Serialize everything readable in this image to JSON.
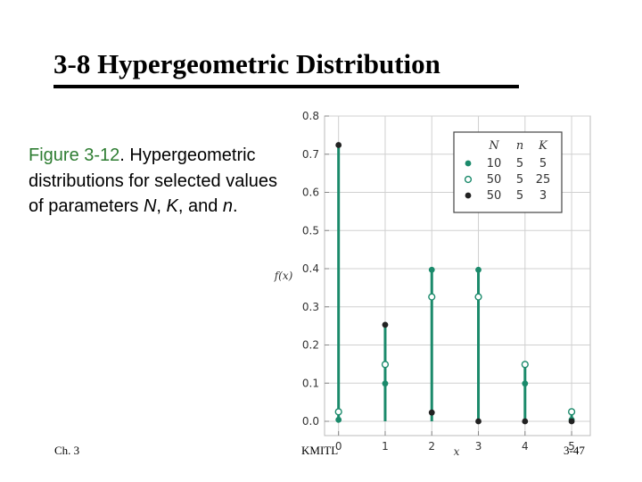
{
  "slide": {
    "title": "3-8 Hypergeometric Distribution",
    "caption": {
      "figure_label": "Figure 3-12",
      "text_part1": ". Hypergeometric distributions for selected values of parameters ",
      "param_N": "N",
      "sep1": ", ",
      "param_K": "K",
      "sep2": ", and ",
      "param_n": "n",
      "end": "."
    },
    "footer": {
      "chapter": "Ch. 3",
      "org": "KMITL",
      "page": "3-47"
    }
  },
  "colors": {
    "stem": "#1b8a6b",
    "filled_marker": "#1b8a6b",
    "dark_marker": "#222222",
    "grid": "#d0d0d0"
  },
  "chart_data": {
    "type": "scatter",
    "title": "",
    "xlabel": "x",
    "ylabel": "f(x)",
    "x": [
      0,
      1,
      2,
      3,
      4,
      5
    ],
    "xlim": [
      -0.3,
      5.4
    ],
    "ylim": [
      0,
      0.8
    ],
    "yticks": [
      "0.0",
      "0.1",
      "0.2",
      "0.3",
      "0.4",
      "0.5",
      "0.6",
      "0.7",
      "0.8"
    ],
    "xticks": [
      "0",
      "1",
      "2",
      "3",
      "4",
      "5"
    ],
    "grid": true,
    "legend": {
      "position": "top-right",
      "headers": [
        "N",
        "n",
        "K"
      ],
      "rows": [
        {
          "marker": "filled-green",
          "N": "10",
          "n": "5",
          "K": "5"
        },
        {
          "marker": "open-circle",
          "N": "50",
          "n": "5",
          "K": "25"
        },
        {
          "marker": "filled-dark",
          "N": "50",
          "n": "5",
          "K": "3"
        }
      ]
    },
    "series": [
      {
        "marker": "filled-green",
        "values": [
          0.004,
          0.099,
          0.397,
          0.397,
          0.099,
          0.004
        ]
      },
      {
        "marker": "open-circle",
        "values": [
          0.025,
          0.149,
          0.326,
          0.326,
          0.149,
          0.025
        ]
      },
      {
        "marker": "filled-dark",
        "values": [
          0.724,
          0.253,
          0.023,
          0.0,
          0.0,
          0.0
        ]
      }
    ]
  }
}
